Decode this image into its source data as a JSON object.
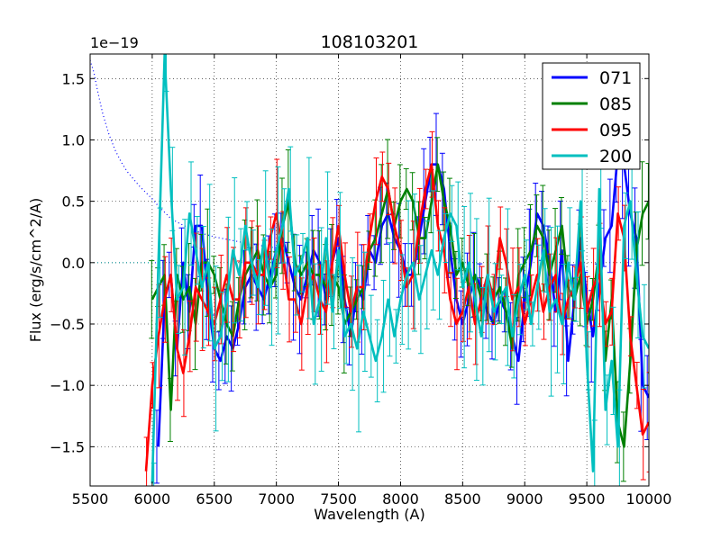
{
  "chart_data": {
    "type": "line",
    "title": "108103201",
    "xlabel": "Wavelength (A)",
    "ylabel": "Flux (erg/s/cm^2/A)",
    "y_scale_label": "1e−19",
    "xlim": [
      5500,
      10000
    ],
    "ylim": [
      -1.82,
      1.7
    ],
    "x_ticks": [
      5500,
      6000,
      6500,
      7000,
      7500,
      8000,
      8500,
      9000,
      9500,
      10000
    ],
    "x_tick_labels": [
      "5500",
      "6000",
      "6500",
      "7000",
      "7500",
      "8000",
      "8500",
      "9000",
      "9500",
      "10000"
    ],
    "y_ticks": [
      -1.5,
      -1.0,
      -0.5,
      0.0,
      0.5,
      1.0,
      1.5
    ],
    "y_tick_labels": [
      "−1.5",
      "−1.0",
      "−0.5",
      "0.0",
      "0.5",
      "1.0",
      "1.5"
    ],
    "grid": true,
    "legend_position": "top-right",
    "sky_reference": {
      "style": "dotted",
      "color": "#0000ff",
      "x": [
        5500,
        5530,
        5560,
        5600,
        5650,
        5700,
        5750,
        5800,
        5850,
        5900,
        5950,
        6000,
        6050,
        6100,
        6150,
        6200,
        6300,
        6400,
        6500,
        6600,
        6700,
        6800,
        7000
      ],
      "y": [
        1.65,
        1.55,
        1.4,
        1.22,
        1.05,
        0.92,
        0.82,
        0.74,
        0.68,
        0.62,
        0.57,
        0.52,
        0.46,
        0.41,
        0.36,
        0.33,
        0.28,
        0.24,
        0.21,
        0.19,
        0.17,
        0.15,
        0.12
      ]
    },
    "series": [
      {
        "name": "071",
        "color": "#0000ff",
        "x": [
          6050,
          6100,
          6150,
          6200,
          6250,
          6300,
          6350,
          6400,
          6450,
          6500,
          6550,
          6600,
          6650,
          6700,
          6750,
          6800,
          6850,
          6900,
          6950,
          7000,
          7050,
          7100,
          7150,
          7200,
          7250,
          7300,
          7350,
          7400,
          7450,
          7500,
          7550,
          7600,
          7650,
          7700,
          7750,
          7800,
          7850,
          7900,
          7950,
          8000,
          8050,
          8100,
          8150,
          8200,
          8250,
          8300,
          8350,
          8400,
          8450,
          8500,
          8550,
          8600,
          8650,
          8700,
          8750,
          8800,
          8850,
          8900,
          8950,
          9000,
          9050,
          9100,
          9150,
          9200,
          9250,
          9300,
          9350,
          9400,
          9450,
          9500,
          9550,
          9600,
          9650,
          9700,
          9750,
          9800,
          9850,
          9900,
          9950,
          10000
        ],
        "y": [
          -1.5,
          -0.3,
          -0.1,
          -0.7,
          0.0,
          -0.4,
          0.3,
          0.3,
          -0.3,
          -0.7,
          -0.8,
          -0.6,
          -0.7,
          -0.5,
          -0.2,
          -0.1,
          -0.2,
          -0.3,
          -0.1,
          0.1,
          0.2,
          0.0,
          -0.2,
          -0.3,
          -0.1,
          0.1,
          0.0,
          -0.3,
          0.0,
          0.2,
          -0.3,
          -0.6,
          -0.2,
          -0.3,
          0.1,
          0.0,
          0.3,
          0.4,
          0.2,
          0.1,
          -0.1,
          -0.1,
          0.2,
          0.5,
          0.8,
          0.8,
          0.6,
          0.1,
          -0.3,
          -0.5,
          -0.3,
          -0.1,
          -0.2,
          -0.4,
          -0.5,
          -0.3,
          -0.4,
          -0.6,
          -0.8,
          -0.3,
          0.0,
          0.4,
          0.3,
          0.0,
          -0.4,
          0.1,
          -0.8,
          -0.3,
          0.2,
          -0.3,
          -0.6,
          -0.2,
          0.2,
          0.3,
          0.9,
          0.8,
          0.4,
          0.2,
          -1.0,
          -1.1
        ]
      },
      {
        "name": "085",
        "color": "#008000",
        "x": [
          6000,
          6050,
          6100,
          6150,
          6200,
          6250,
          6300,
          6350,
          6400,
          6450,
          6500,
          6550,
          6600,
          6650,
          6700,
          6750,
          6800,
          6850,
          6900,
          6950,
          7000,
          7050,
          7100,
          7150,
          7200,
          7250,
          7300,
          7350,
          7400,
          7450,
          7500,
          7550,
          7600,
          7650,
          7700,
          7750,
          7800,
          7850,
          7900,
          7950,
          8000,
          8050,
          8100,
          8150,
          8200,
          8250,
          8300,
          8350,
          8400,
          8450,
          8500,
          8550,
          8600,
          8650,
          8700,
          8750,
          8800,
          8850,
          8900,
          8950,
          9000,
          9050,
          9100,
          9150,
          9200,
          9250,
          9300,
          9350,
          9400,
          9450,
          9500,
          9550,
          9600,
          9650,
          9700,
          9750,
          9800,
          9850,
          9900,
          9950,
          10000
        ],
        "y": [
          -0.3,
          -0.2,
          -0.1,
          -1.2,
          -0.1,
          -0.3,
          -0.2,
          -0.5,
          0.0,
          0.0,
          -0.1,
          -0.3,
          -0.5,
          -0.6,
          -0.3,
          -0.1,
          0.0,
          0.1,
          -0.1,
          -0.2,
          -0.1,
          0.3,
          0.5,
          0.0,
          -0.1,
          0.0,
          -0.1,
          -0.1,
          -0.2,
          -0.1,
          -0.2,
          -0.5,
          -0.4,
          -0.3,
          -0.2,
          0.1,
          0.2,
          0.4,
          0.6,
          0.3,
          0.5,
          0.6,
          0.5,
          0.2,
          0.2,
          0.5,
          0.8,
          0.5,
          0.3,
          -0.1,
          0.0,
          -0.2,
          -0.1,
          -0.3,
          -0.2,
          -0.3,
          -0.2,
          -0.4,
          -0.7,
          -0.1,
          0.0,
          0.1,
          0.3,
          0.2,
          -0.1,
          0.1,
          0.3,
          -0.2,
          -0.3,
          -0.1,
          -0.5,
          -0.3,
          0.1,
          -0.8,
          -0.3,
          -1.3,
          -1.5,
          -0.8,
          0.1,
          0.4,
          0.5
        ]
      },
      {
        "name": "095",
        "color": "#ff0000",
        "x": [
          5950,
          6000,
          6050,
          6100,
          6150,
          6200,
          6250,
          6300,
          6350,
          6400,
          6450,
          6500,
          6550,
          6600,
          6650,
          6700,
          6750,
          6800,
          6850,
          6900,
          6950,
          7000,
          7050,
          7100,
          7150,
          7200,
          7250,
          7300,
          7350,
          7400,
          7450,
          7500,
          7550,
          7600,
          7650,
          7700,
          7750,
          7800,
          7850,
          7900,
          7950,
          8000,
          8050,
          8100,
          8150,
          8200,
          8250,
          8300,
          8350,
          8400,
          8450,
          8500,
          8550,
          8600,
          8650,
          8700,
          8750,
          8800,
          8850,
          8900,
          8950,
          9000,
          9050,
          9100,
          9150,
          9200,
          9250,
          9300,
          9350,
          9400,
          9450,
          9500,
          9550,
          9600,
          9650,
          9700,
          9750,
          9800,
          9850,
          9900,
          9950,
          10000
        ],
        "y": [
          -1.7,
          -1.0,
          -0.6,
          -0.3,
          -0.1,
          -0.7,
          -0.9,
          -0.6,
          -0.2,
          -0.3,
          -0.4,
          -0.5,
          -0.3,
          -0.1,
          -0.3,
          -0.3,
          0.0,
          0.0,
          -0.1,
          -0.1,
          0.2,
          0.4,
          0.1,
          -0.3,
          -0.3,
          -0.5,
          -0.2,
          -0.1,
          -0.3,
          -0.4,
          0.0,
          0.3,
          -0.1,
          -0.4,
          -0.2,
          -0.2,
          0.2,
          0.5,
          0.7,
          0.6,
          0.3,
          0.1,
          -0.2,
          -0.1,
          0.3,
          0.6,
          0.8,
          0.3,
          0.1,
          -0.3,
          -0.5,
          -0.4,
          -0.2,
          -0.5,
          -0.3,
          -0.1,
          -0.3,
          0.2,
          0.0,
          -0.3,
          -0.2,
          -0.5,
          -0.3,
          -0.1,
          -0.4,
          -0.2,
          -0.1,
          -0.5,
          -0.3,
          -0.2,
          0.0,
          -0.4,
          -0.2,
          -0.1,
          -0.5,
          -0.4,
          0.4,
          0.2,
          -0.6,
          -1.0,
          -1.4,
          -1.3
        ]
      },
      {
        "name": "200",
        "color": "#00bfbf",
        "x": [
          6000,
          6050,
          6100,
          6150,
          6200,
          6250,
          6300,
          6350,
          6400,
          6450,
          6500,
          6550,
          6600,
          6650,
          6700,
          6750,
          6800,
          6850,
          6900,
          6950,
          7000,
          7050,
          7100,
          7150,
          7200,
          7250,
          7300,
          7350,
          7400,
          7450,
          7500,
          7550,
          7600,
          7650,
          7700,
          7750,
          7800,
          7850,
          7900,
          7950,
          8000,
          8050,
          8100,
          8150,
          8200,
          8250,
          8300,
          8350,
          8400,
          8450,
          8500,
          8550,
          8600,
          8650,
          8700,
          8750,
          8800,
          8850,
          8900,
          8950,
          9000,
          9050,
          9100,
          9150,
          9200,
          9250,
          9300,
          9350,
          9400,
          9450,
          9500,
          9550,
          9600,
          9650,
          9700,
          9750,
          9800,
          9850,
          9900,
          9950,
          10000
        ],
        "y": [
          -1.8,
          0.0,
          1.7,
          0.6,
          -0.3,
          -0.2,
          0.4,
          0.1,
          -0.2,
          0.0,
          -0.7,
          -0.6,
          -0.3,
          0.1,
          -0.1,
          0.3,
          0.0,
          -0.2,
          0.2,
          -0.2,
          0.1,
          0.3,
          0.6,
          -0.1,
          0.0,
          0.2,
          -0.5,
          -0.3,
          0.2,
          -0.4,
          0.1,
          -0.6,
          -0.5,
          -0.7,
          -0.4,
          -0.6,
          -0.8,
          -0.6,
          -0.3,
          -0.6,
          -0.3,
          -0.1,
          0.0,
          -0.3,
          -0.1,
          0.1,
          -0.1,
          0.2,
          0.4,
          0.3,
          -0.2,
          0.0,
          -0.3,
          -0.6,
          -0.1,
          -0.4,
          -0.3,
          -0.2,
          -0.6,
          -0.3,
          -0.1,
          -0.5,
          -0.2,
          0.1,
          -0.4,
          -0.3,
          -0.5,
          0.0,
          -0.3,
          0.5,
          -0.8,
          -1.7,
          0.6,
          -1.2,
          -0.8,
          -1.5,
          0.3,
          0.5,
          -0.1,
          -0.6,
          -0.7
        ]
      }
    ]
  }
}
